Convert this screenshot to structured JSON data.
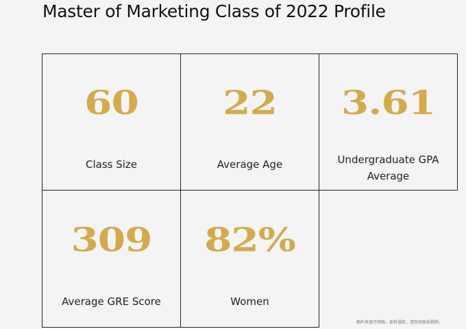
{
  "page": {
    "title": "Master of Marketing Class of 2022 Profile"
  },
  "theme": {
    "accent_gold": "#d3ab4e",
    "border": "#222222",
    "background": "#f4f4f4"
  },
  "stats": [
    {
      "value": "60",
      "label": "Class Size"
    },
    {
      "value": "22",
      "label": "Average Age"
    },
    {
      "value": "3.61",
      "label": "Undergraduate GPA Average"
    },
    {
      "value": "309",
      "label": "Average GRE Score"
    },
    {
      "value": "82%",
      "label": "Women"
    }
  ],
  "watermark": "图片来源于网络，如有侵权，请及时联系删除。"
}
